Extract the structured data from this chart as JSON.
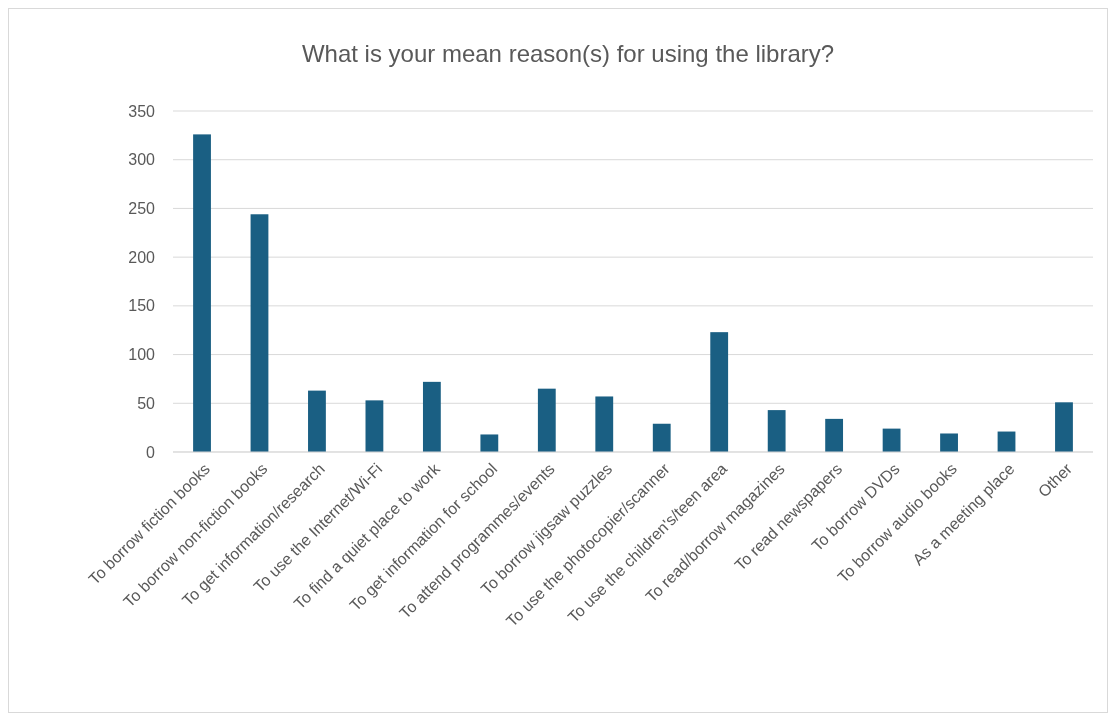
{
  "chart_data": {
    "type": "bar",
    "title": "What is your mean reason(s) for using the library?",
    "categories": [
      "To borrow fiction books",
      "To borrow non-fiction books",
      "To get information/research",
      "To use the Internet/Wi-Fi",
      "To find a quiet place to work",
      "To get information for school",
      "To attend programmes/events",
      "To borrow jigsaw puzzles",
      "To use the photocopier/scanner",
      "To use the children's/teen area",
      "To read/borrow magazines",
      "To read newspapers",
      "To borrow DVDs",
      "To borrow audio books",
      "As a meeting place",
      "Other"
    ],
    "values": [
      326,
      244,
      63,
      53,
      72,
      18,
      65,
      57,
      29,
      123,
      43,
      34,
      24,
      19,
      21,
      51
    ],
    "color": "#1a5f83",
    "ylim": [
      0,
      350
    ],
    "yticks": [
      0,
      50,
      100,
      150,
      200,
      250,
      300,
      350
    ],
    "grid": "y"
  }
}
